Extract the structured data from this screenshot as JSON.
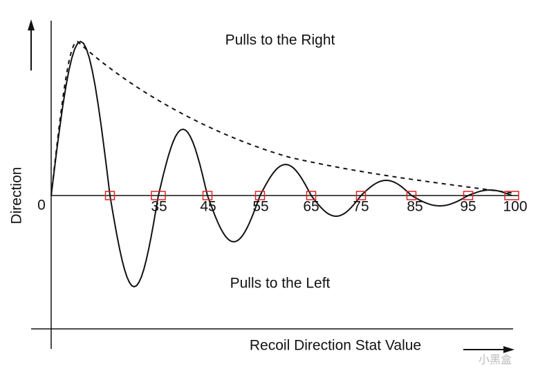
{
  "annotations": {
    "top": "Pulls to the Right",
    "bottom": "Pulls to the Left"
  },
  "axes": {
    "y_label": "Direction",
    "x_label": "Recoil Direction Stat Value"
  },
  "tick_labels": [
    "0",
    "35",
    "45",
    "55",
    "65",
    "75",
    "85",
    "95",
    "100"
  ],
  "watermark": "小黑盒"
}
